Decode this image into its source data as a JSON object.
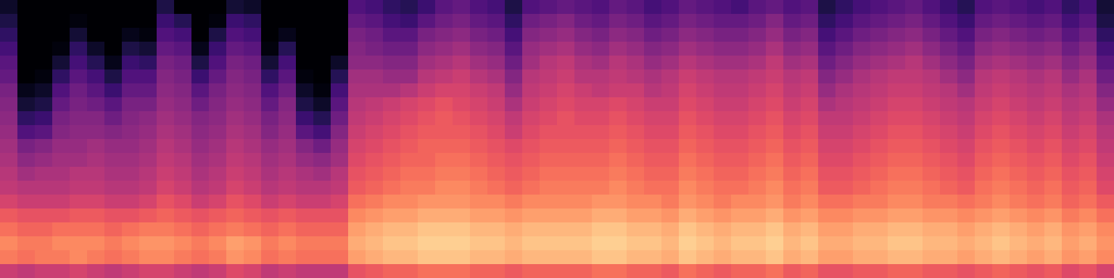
{
  "chart_data": {
    "type": "heatmap",
    "color": "magma",
    "zlim": [
      -80,
      0
    ],
    "tick_labels": false,
    "values": [
      [
        -74,
        -80,
        -80,
        -80,
        -80,
        -80,
        -80,
        -80,
        -80,
        -70,
        -80,
        -80,
        -80,
        -72,
        -74,
        -80,
        -80,
        -80,
        -80,
        -80,
        -60,
        -62,
        -66,
        -68,
        -64,
        -58,
        -56,
        -60,
        -62,
        -70,
        -60,
        -58,
        -56,
        -58,
        -60,
        -56,
        -58,
        -62,
        -60,
        -56,
        -58,
        -60,
        -62,
        -58,
        -56,
        -60,
        -58,
        -70,
        -66,
        -62,
        -60,
        -58,
        -56,
        -60,
        -64,
        -68,
        -60,
        -58,
        -60,
        -62,
        -60,
        -66,
        -62,
        -72
      ],
      [
        -70,
        -80,
        -80,
        -80,
        -78,
        -80,
        -80,
        -80,
        -80,
        -64,
        -68,
        -80,
        -78,
        -64,
        -66,
        -80,
        -80,
        -80,
        -80,
        -80,
        -56,
        -58,
        -62,
        -64,
        -58,
        -54,
        -52,
        -56,
        -58,
        -66,
        -54,
        -52,
        -50,
        -54,
        -56,
        -52,
        -54,
        -58,
        -56,
        -52,
        -54,
        -56,
        -56,
        -54,
        -50,
        -56,
        -54,
        -66,
        -62,
        -58,
        -56,
        -54,
        -52,
        -56,
        -60,
        -64,
        -56,
        -54,
        -56,
        -58,
        -56,
        -62,
        -58,
        -70
      ],
      [
        -66,
        -80,
        -80,
        -80,
        -72,
        -80,
        -80,
        -76,
        -78,
        -60,
        -62,
        -80,
        -70,
        -60,
        -62,
        -80,
        -76,
        -80,
        -80,
        -80,
        -52,
        -54,
        -58,
        -58,
        -52,
        -50,
        -48,
        -52,
        -54,
        -62,
        -50,
        -48,
        -46,
        -50,
        -52,
        -48,
        -50,
        -54,
        -52,
        -48,
        -50,
        -52,
        -52,
        -50,
        -46,
        -52,
        -50,
        -62,
        -58,
        -54,
        -52,
        -50,
        -48,
        -52,
        -56,
        -60,
        -52,
        -50,
        -52,
        -54,
        -52,
        -58,
        -54,
        -66
      ],
      [
        -62,
        -80,
        -80,
        -78,
        -66,
        -74,
        -80,
        -70,
        -72,
        -56,
        -58,
        -76,
        -64,
        -56,
        -58,
        -78,
        -68,
        -80,
        -80,
        -80,
        -50,
        -52,
        -54,
        -54,
        -48,
        -46,
        -44,
        -48,
        -50,
        -58,
        -46,
        -44,
        -42,
        -46,
        -48,
        -44,
        -46,
        -50,
        -48,
        -44,
        -46,
        -48,
        -48,
        -46,
        -42,
        -48,
        -46,
        -58,
        -54,
        -50,
        -48,
        -46,
        -44,
        -48,
        -52,
        -56,
        -48,
        -46,
        -48,
        -50,
        -48,
        -54,
        -50,
        -62
      ],
      [
        -58,
        -80,
        -80,
        -72,
        -62,
        -68,
        -76,
        -64,
        -66,
        -52,
        -54,
        -70,
        -60,
        -52,
        -54,
        -72,
        -62,
        -80,
        -80,
        -74,
        -48,
        -48,
        -50,
        -50,
        -44,
        -42,
        -40,
        -44,
        -46,
        -54,
        -44,
        -40,
        -38,
        -42,
        -44,
        -40,
        -42,
        -46,
        -44,
        -40,
        -42,
        -44,
        -44,
        -42,
        -38,
        -44,
        -42,
        -54,
        -50,
        -46,
        -44,
        -42,
        -40,
        -44,
        -48,
        -52,
        -44,
        -42,
        -44,
        -46,
        -44,
        -50,
        -46,
        -58
      ],
      [
        -56,
        -80,
        -78,
        -66,
        -58,
        -62,
        -70,
        -60,
        -60,
        -50,
        -52,
        -64,
        -56,
        -50,
        -52,
        -66,
        -58,
        -78,
        -80,
        -68,
        -44,
        -44,
        -46,
        -46,
        -40,
        -38,
        -36,
        -40,
        -42,
        -50,
        -40,
        -38,
        -36,
        -40,
        -40,
        -38,
        -40,
        -42,
        -40,
        -36,
        -38,
        -40,
        -40,
        -38,
        -36,
        -40,
        -38,
        -50,
        -46,
        -42,
        -40,
        -38,
        -38,
        -40,
        -44,
        -48,
        -40,
        -38,
        -40,
        -42,
        -40,
        -46,
        -42,
        -54
      ],
      [
        -52,
        -76,
        -74,
        -60,
        -54,
        -58,
        -64,
        -56,
        -56,
        -48,
        -50,
        -58,
        -52,
        -48,
        -50,
        -60,
        -54,
        -74,
        -78,
        -62,
        -42,
        -42,
        -42,
        -40,
        -36,
        -34,
        -34,
        -36,
        -38,
        -46,
        -38,
        -36,
        -34,
        -36,
        -38,
        -36,
        -36,
        -40,
        -38,
        -34,
        -36,
        -38,
        -38,
        -36,
        -34,
        -38,
        -36,
        -46,
        -42,
        -40,
        -38,
        -36,
        -36,
        -38,
        -40,
        -44,
        -38,
        -36,
        -38,
        -40,
        -38,
        -42,
        -40,
        -50
      ],
      [
        -50,
        -72,
        -70,
        -56,
        -52,
        -54,
        -58,
        -52,
        -52,
        -46,
        -48,
        -54,
        -50,
        -46,
        -48,
        -56,
        -50,
        -70,
        -74,
        -58,
        -40,
        -38,
        -36,
        -34,
        -32,
        -30,
        -32,
        -34,
        -36,
        -42,
        -36,
        -34,
        -32,
        -34,
        -34,
        -32,
        -34,
        -36,
        -36,
        -32,
        -34,
        -36,
        -36,
        -34,
        -32,
        -36,
        -34,
        -42,
        -40,
        -38,
        -36,
        -34,
        -34,
        -36,
        -38,
        -40,
        -36,
        -34,
        -36,
        -38,
        -36,
        -40,
        -38,
        -46
      ],
      [
        -48,
        -66,
        -64,
        -52,
        -50,
        -50,
        -54,
        -50,
        -48,
        -44,
        -46,
        -50,
        -48,
        -44,
        -46,
        -52,
        -48,
        -64,
        -68,
        -54,
        -38,
        -36,
        -34,
        -32,
        -30,
        -28,
        -30,
        -32,
        -34,
        -38,
        -34,
        -32,
        -30,
        -32,
        -32,
        -30,
        -32,
        -34,
        -34,
        -30,
        -32,
        -34,
        -34,
        -32,
        -30,
        -34,
        -32,
        -38,
        -38,
        -36,
        -34,
        -32,
        -32,
        -34,
        -36,
        -38,
        -34,
        -32,
        -34,
        -36,
        -34,
        -38,
        -36,
        -42
      ],
      [
        -46,
        -60,
        -58,
        -50,
        -48,
        -48,
        -50,
        -48,
        -46,
        -42,
        -44,
        -48,
        -46,
        -42,
        -44,
        -50,
        -46,
        -58,
        -62,
        -50,
        -36,
        -34,
        -32,
        -30,
        -28,
        -28,
        -28,
        -30,
        -32,
        -36,
        -32,
        -30,
        -30,
        -30,
        -30,
        -28,
        -30,
        -32,
        -32,
        -28,
        -30,
        -32,
        -32,
        -30,
        -28,
        -32,
        -30,
        -36,
        -36,
        -34,
        -32,
        -30,
        -30,
        -32,
        -34,
        -36,
        -32,
        -30,
        -32,
        -34,
        -32,
        -36,
        -34,
        -40
      ],
      [
        -44,
        -52,
        -50,
        -46,
        -46,
        -44,
        -46,
        -46,
        -44,
        -40,
        -42,
        -46,
        -44,
        -40,
        -42,
        -46,
        -44,
        -50,
        -54,
        -46,
        -34,
        -32,
        -30,
        -28,
        -26,
        -26,
        -26,
        -28,
        -30,
        -32,
        -30,
        -28,
        -28,
        -28,
        -28,
        -26,
        -28,
        -30,
        -30,
        -26,
        -28,
        -30,
        -30,
        -28,
        -26,
        -30,
        -28,
        -34,
        -34,
        -32,
        -30,
        -28,
        -28,
        -30,
        -32,
        -34,
        -30,
        -28,
        -30,
        -32,
        -30,
        -34,
        -32,
        -38
      ],
      [
        -42,
        -48,
        -46,
        -44,
        -44,
        -42,
        -44,
        -44,
        -42,
        -38,
        -40,
        -44,
        -42,
        -38,
        -40,
        -44,
        -42,
        -46,
        -48,
        -44,
        -32,
        -30,
        -28,
        -26,
        -26,
        -24,
        -24,
        -26,
        -28,
        -30,
        -28,
        -26,
        -26,
        -26,
        -26,
        -24,
        -26,
        -28,
        -28,
        -24,
        -26,
        -28,
        -28,
        -26,
        -24,
        -28,
        -26,
        -32,
        -32,
        -30,
        -28,
        -26,
        -26,
        -28,
        -30,
        -32,
        -28,
        -26,
        -28,
        -30,
        -28,
        -32,
        -30,
        -36
      ],
      [
        -40,
        -44,
        -42,
        -42,
        -40,
        -40,
        -42,
        -42,
        -40,
        -36,
        -38,
        -42,
        -40,
        -36,
        -38,
        -42,
        -40,
        -42,
        -44,
        -40,
        -30,
        -28,
        -26,
        -24,
        -24,
        -22,
        -22,
        -24,
        -26,
        -28,
        -26,
        -24,
        -24,
        -24,
        -24,
        -22,
        -24,
        -26,
        -26,
        -22,
        -24,
        -26,
        -26,
        -24,
        -22,
        -26,
        -24,
        -30,
        -30,
        -28,
        -26,
        -24,
        -24,
        -26,
        -28,
        -30,
        -26,
        -24,
        -26,
        -28,
        -26,
        -30,
        -28,
        -34
      ],
      [
        -38,
        -40,
        -40,
        -40,
        -38,
        -38,
        -40,
        -40,
        -38,
        -34,
        -36,
        -40,
        -38,
        -34,
        -36,
        -40,
        -38,
        -40,
        -40,
        -38,
        -28,
        -26,
        -24,
        -22,
        -22,
        -20,
        -20,
        -22,
        -24,
        -26,
        -24,
        -22,
        -22,
        -22,
        -22,
        -20,
        -22,
        -24,
        -24,
        -20,
        -22,
        -24,
        -24,
        -22,
        -20,
        -24,
        -22,
        -28,
        -28,
        -26,
        -24,
        -22,
        -22,
        -24,
        -26,
        -28,
        -24,
        -22,
        -24,
        -26,
        -24,
        -28,
        -26,
        -32
      ],
      [
        -34,
        -36,
        -36,
        -36,
        -34,
        -34,
        -36,
        -36,
        -34,
        -30,
        -32,
        -36,
        -34,
        -30,
        -32,
        -36,
        -34,
        -36,
        -36,
        -34,
        -24,
        -22,
        -20,
        -20,
        -18,
        -18,
        -18,
        -20,
        -20,
        -22,
        -20,
        -20,
        -20,
        -20,
        -18,
        -18,
        -20,
        -20,
        -22,
        -18,
        -20,
        -22,
        -20,
        -20,
        -18,
        -22,
        -20,
        -24,
        -24,
        -22,
        -22,
        -20,
        -20,
        -22,
        -22,
        -24,
        -22,
        -20,
        -22,
        -24,
        -22,
        -26,
        -24,
        -28
      ],
      [
        -28,
        -30,
        -30,
        -30,
        -28,
        -28,
        -30,
        -30,
        -28,
        -26,
        -28,
        -30,
        -28,
        -26,
        -28,
        -30,
        -28,
        -30,
        -30,
        -30,
        -20,
        -18,
        -16,
        -16,
        -14,
        -14,
        -14,
        -16,
        -16,
        -18,
        -16,
        -16,
        -16,
        -16,
        -14,
        -14,
        -16,
        -16,
        -18,
        -14,
        -16,
        -18,
        -16,
        -16,
        -14,
        -18,
        -16,
        -20,
        -20,
        -18,
        -18,
        -16,
        -16,
        -18,
        -18,
        -20,
        -18,
        -16,
        -18,
        -20,
        -18,
        -22,
        -20,
        -24
      ],
      [
        -24,
        -26,
        -26,
        -24,
        -24,
        -24,
        -26,
        -24,
        -22,
        -22,
        -24,
        -26,
        -24,
        -22,
        -24,
        -26,
        -24,
        -26,
        -26,
        -26,
        -16,
        -14,
        -12,
        -12,
        -10,
        -10,
        -10,
        -12,
        -12,
        -14,
        -12,
        -12,
        -12,
        -12,
        -10,
        -10,
        -12,
        -12,
        -14,
        -10,
        -12,
        -14,
        -12,
        -12,
        -10,
        -14,
        -12,
        -16,
        -16,
        -14,
        -14,
        -12,
        -12,
        -14,
        -14,
        -16,
        -14,
        -12,
        -14,
        -16,
        -14,
        -18,
        -16,
        -20
      ],
      [
        -20,
        -22,
        -22,
        -20,
        -20,
        -20,
        -22,
        -20,
        -18,
        -18,
        -20,
        -22,
        -20,
        -16,
        -18,
        -22,
        -20,
        -22,
        -22,
        -22,
        -14,
        -12,
        -10,
        -10,
        -8,
        -8,
        -8,
        -10,
        -10,
        -12,
        -10,
        -10,
        -10,
        -10,
        -8,
        -8,
        -10,
        -10,
        -12,
        -8,
        -10,
        -12,
        -10,
        -10,
        -8,
        -12,
        -10,
        -14,
        -14,
        -12,
        -12,
        -10,
        -10,
        -12,
        -12,
        -14,
        -12,
        -10,
        -12,
        -14,
        -12,
        -16,
        -14,
        -18
      ],
      [
        -22,
        -24,
        -22,
        -22,
        -20,
        -22,
        -24,
        -22,
        -20,
        -20,
        -22,
        -24,
        -22,
        -18,
        -20,
        -24,
        -22,
        -24,
        -24,
        -24,
        -16,
        -14,
        -12,
        -12,
        -10,
        -10,
        -10,
        -12,
        -12,
        -14,
        -12,
        -12,
        -12,
        -12,
        -10,
        -10,
        -12,
        -12,
        -14,
        -10,
        -12,
        -14,
        -12,
        -12,
        -10,
        -14,
        -12,
        -16,
        -16,
        -14,
        -14,
        -12,
        -12,
        -14,
        -14,
        -16,
        -14,
        -12,
        -14,
        -16,
        -14,
        -18,
        -16,
        -20
      ],
      [
        -36,
        -38,
        -36,
        -36,
        -34,
        -36,
        -38,
        -36,
        -34,
        -34,
        -36,
        -38,
        -36,
        -32,
        -34,
        -38,
        -36,
        -38,
        -38,
        -38,
        -30,
        -28,
        -26,
        -26,
        -24,
        -24,
        -24,
        -26,
        -26,
        -28,
        -26,
        -26,
        -26,
        -26,
        -24,
        -24,
        -26,
        -26,
        -28,
        -24,
        -26,
        -28,
        -26,
        -26,
        -24,
        -28,
        -26,
        -30,
        -30,
        -28,
        -28,
        -26,
        -26,
        -28,
        -28,
        -30,
        -28,
        -26,
        -28,
        -30,
        -28,
        -32,
        -30,
        -34
      ]
    ]
  }
}
